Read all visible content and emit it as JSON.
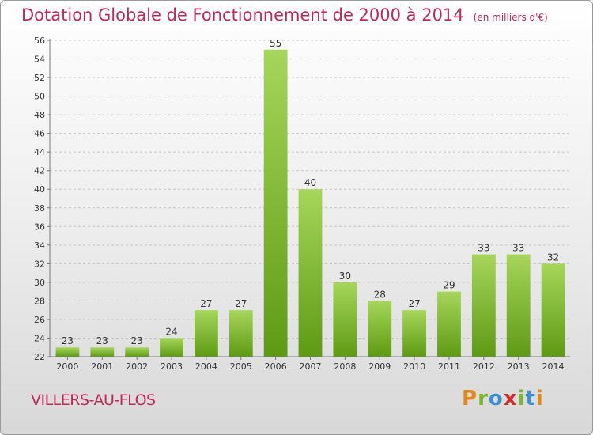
{
  "header": {
    "title": "Dotation Globale de Fonctionnement de 2000 à 2014",
    "unit": "(en milliers d'€)"
  },
  "footer": {
    "commune": "VILLERS-AU-FLOS",
    "logo": "Proxiti"
  },
  "colors": {
    "title": "#c0285a",
    "bar_light": "#a6d65a",
    "bar_dark": "#5e9a14",
    "logo_letters": [
      "#e08a1e",
      "#7ab82c",
      "#3a8fd0",
      "#d0302a",
      "#7ab82c",
      "#3a8fd0",
      "#e08a1e"
    ]
  },
  "chart_data": {
    "type": "bar",
    "title": "Dotation Globale de Fonctionnement de 2000 à 2014",
    "subtitle": "(en milliers d'€)",
    "xlabel": "",
    "ylabel": "",
    "categories": [
      "2000",
      "2001",
      "2002",
      "2003",
      "2004",
      "2005",
      "2006",
      "2007",
      "2008",
      "2009",
      "2010",
      "2011",
      "2012",
      "2013",
      "2014"
    ],
    "values": [
      23,
      23,
      23,
      24,
      27,
      27,
      55,
      40,
      30,
      28,
      27,
      29,
      33,
      33,
      32
    ],
    "ylim": [
      22,
      56
    ],
    "yticks": [
      22,
      24,
      26,
      28,
      30,
      32,
      34,
      36,
      38,
      40,
      42,
      44,
      46,
      48,
      50,
      52,
      54,
      56
    ],
    "grid": "horizontal-dashed"
  }
}
